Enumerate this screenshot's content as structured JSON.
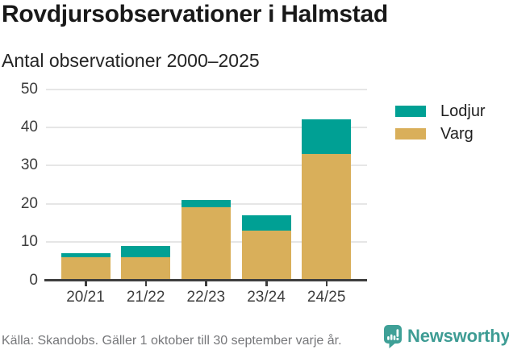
{
  "header": {
    "title": "Rovdjursobservationer i Halmstad",
    "subtitle": "Antal observationer 2000–2025"
  },
  "chart_data": {
    "type": "bar",
    "stacked": true,
    "title": "Rovdjursobservationer i Halmstad",
    "subtitle": "Antal observationer 2000–2025",
    "categories": [
      "20/21",
      "21/22",
      "22/23",
      "23/24",
      "24/25"
    ],
    "series": [
      {
        "name": "Lodjur",
        "color": "#00A094",
        "values": [
          1,
          3,
          2,
          4,
          9
        ]
      },
      {
        "name": "Varg",
        "color": "#D9AF5A",
        "values": [
          6,
          6,
          19,
          13,
          33
        ]
      }
    ],
    "stack_order_bottom_to_top": [
      "Varg",
      "Lodjur"
    ],
    "totals": [
      7,
      9,
      21,
      17,
      42
    ],
    "xlabel": "",
    "ylabel": "",
    "ylim": [
      0,
      50
    ],
    "yticks": [
      0,
      10,
      20,
      30,
      40,
      50
    ],
    "grid": "horizontal-only",
    "legend_position": "right"
  },
  "legend": {
    "items": [
      {
        "label": "Lodjur",
        "color": "#00A094"
      },
      {
        "label": "Varg",
        "color": "#D9AF5A"
      }
    ]
  },
  "footer": {
    "source": "Källa: Skandobs. Gäller 1 oktober till 30 september varje år.",
    "brand": "Newsworthy"
  },
  "colors": {
    "lodjur_teal": "#00A094",
    "varg_tan": "#D9AF5A",
    "brand_teal": "#3FA097",
    "gridline": "#E6E6E6",
    "axis": "#3E3E3E",
    "tick_label": "#3D3D3D",
    "source_gray": "#76777A"
  }
}
